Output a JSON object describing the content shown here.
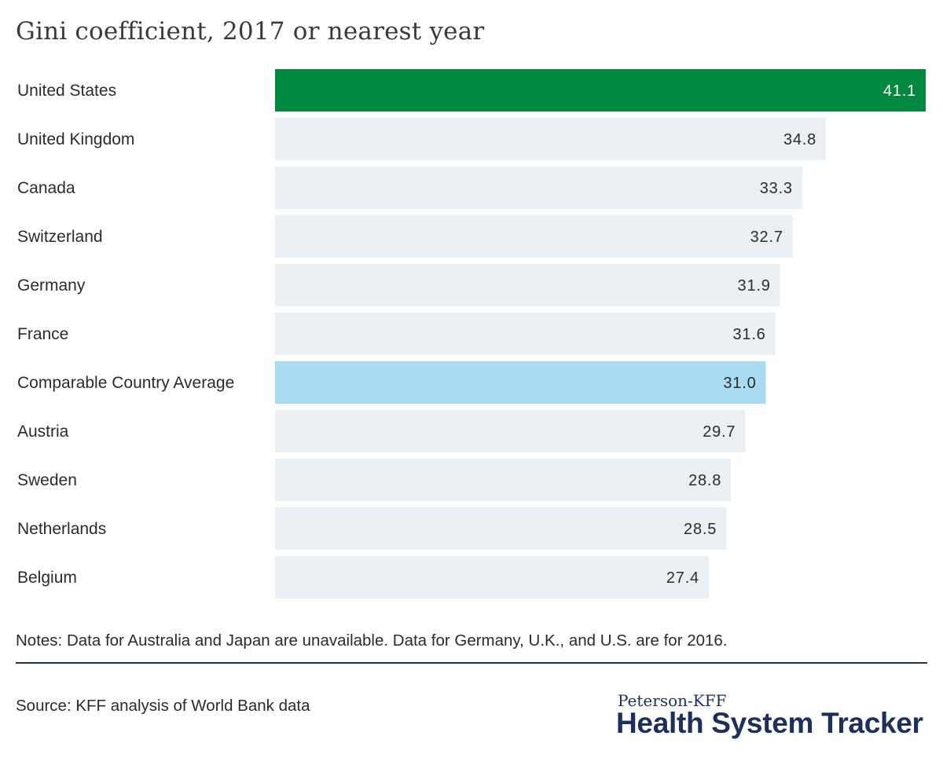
{
  "chart_data": {
    "type": "bar",
    "orientation": "horizontal",
    "title": "Gini coefficient, 2017 or nearest year",
    "categories": [
      "United States",
      "United Kingdom",
      "Canada",
      "Switzerland",
      "Germany",
      "France",
      "Comparable Country Average",
      "Austria",
      "Sweden",
      "Netherlands",
      "Belgium"
    ],
    "values": [
      41.1,
      34.8,
      33.3,
      32.7,
      31.9,
      31.6,
      31.0,
      29.7,
      28.8,
      28.5,
      27.4
    ],
    "value_labels": [
      "41.1",
      "34.8",
      "33.3",
      "32.7",
      "31.9",
      "31.6",
      "31.0",
      "29.7",
      "28.8",
      "28.5",
      "27.4"
    ],
    "bar_colors": [
      "#00883f",
      "#e9eff2",
      "#e9eff2",
      "#e9eff2",
      "#e9eff2",
      "#e9eff2",
      "#a9dbf2",
      "#e9eff2",
      "#e9eff2",
      "#e9eff2",
      "#e9eff2"
    ],
    "xlim": [
      0,
      41.1
    ],
    "grid": false,
    "legend": "none"
  },
  "notes": "Notes: Data for Australia and Japan are unavailable. Data for Germany, U.K., and U.S. are for 2016.",
  "source": "Source: KFF analysis of World Bank data",
  "brand": {
    "top": "Peterson-KFF",
    "main": "Health System Tracker"
  },
  "colors": {
    "highlight": "#00883f",
    "average": "#a9dbf2",
    "default_bar": "#e9eff2",
    "brand": "#1e2f5a"
  }
}
